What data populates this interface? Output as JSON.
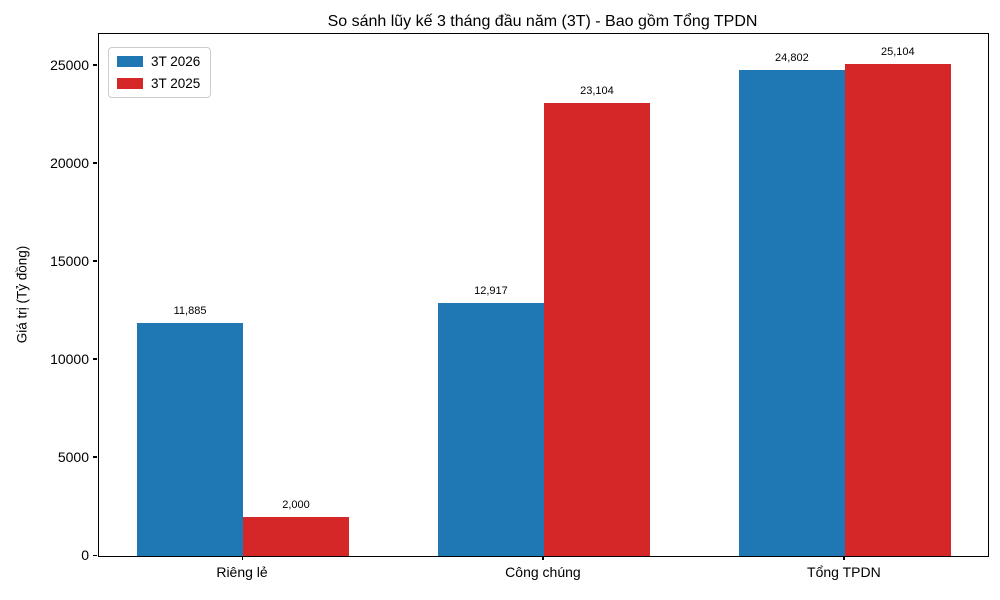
{
  "chart_data": {
    "type": "bar",
    "title": "So sánh lũy kế 3 tháng đầu năm (3T) - Bao gồm Tổng TPDN",
    "ylabel": "Giá trị (Tỷ đồng)",
    "xlabel": "",
    "categories": [
      "Riêng lẻ",
      "Công chúng",
      "Tổng TPDN"
    ],
    "series": [
      {
        "name": "3T 2026",
        "color": "#1f77b4",
        "values": [
          11885,
          12917,
          24802
        ],
        "value_labels": [
          "11,885",
          "12,917",
          "24,802"
        ]
      },
      {
        "name": "3T 2025",
        "color": "#d62728",
        "values": [
          2000,
          23104,
          25104
        ],
        "value_labels": [
          "2,000",
          "23,104",
          "25,104"
        ]
      }
    ],
    "y_ticks": [
      "0",
      "5000",
      "10000",
      "15000",
      "20000",
      "25000"
    ],
    "y_tick_values": [
      0,
      5000,
      10000,
      15000,
      20000,
      25000
    ],
    "ylim": [
      0,
      26632
    ],
    "grid": false,
    "legend_position": "upper left"
  }
}
